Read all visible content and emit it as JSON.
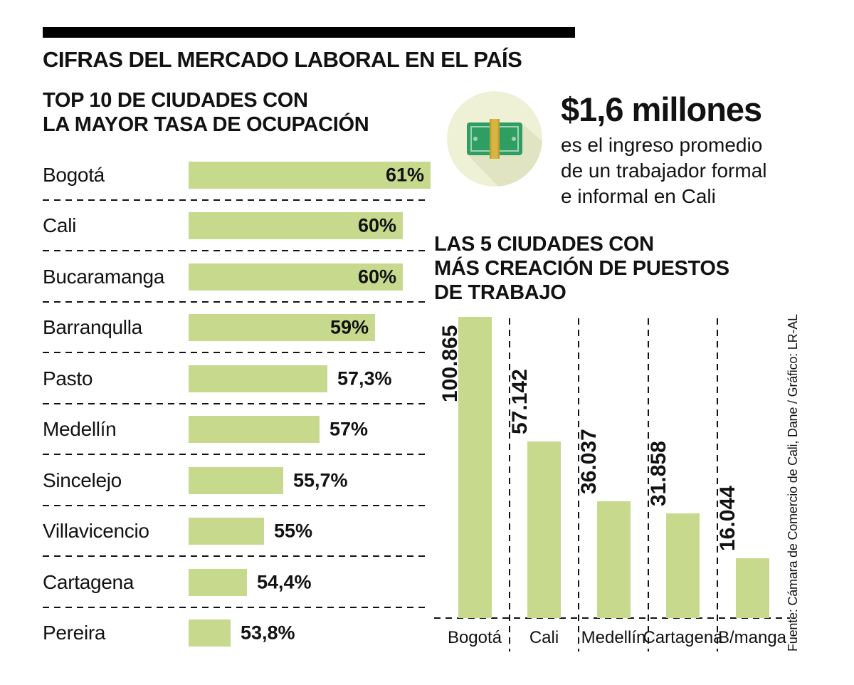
{
  "header": {
    "title": "CIFRAS DEL MERCADO LABORAL EN EL PAÍS"
  },
  "callout": {
    "icon": "money-bill-icon",
    "amount": "$1,6 millones",
    "description": "es el ingreso promedio\nde un trabajador formal\ne informal en Cali"
  },
  "source": "Fuente: Cámara de Comercio de Cali, Dane / Gráfico: LR-AL",
  "colors": {
    "bar_green": "#c6d98d",
    "icon_circle": "#eef1d6",
    "bill_green": "#2f9e63",
    "band_yellow": "#d9b441",
    "text": "#121212"
  },
  "chart_data": [
    {
      "type": "bar",
      "orientation": "horizontal",
      "title": "TOP 10 DE CIUDADES CON\nLA MAYOR TASA DE OCUPACIÓN",
      "categories": [
        "Bogotá",
        "Cali",
        "Bucaramanga",
        "Barranqulla",
        "Pasto",
        "Medellín",
        "Sincelejo",
        "Villavicencio",
        "Cartagena",
        "Pereira"
      ],
      "values": [
        61,
        60,
        60,
        59,
        57.3,
        57,
        55.7,
        55,
        54.4,
        53.8
      ],
      "labels": [
        "61%",
        "60%",
        "60%",
        "59%",
        "57,3%",
        "57%",
        "55,7%",
        "55%",
        "54,4%",
        "53,8%"
      ],
      "unit": "%",
      "xlim": [
        52.3,
        61
      ],
      "grid": false,
      "legend": false
    },
    {
      "type": "bar",
      "orientation": "vertical",
      "title": "LAS 5 CIUDADES CON\nMÁS CREACIÓN DE PUESTOS\nDE TRABAJO",
      "categories": [
        "Bogotá",
        "Cali",
        "Medellín",
        "Cartagena",
        "B/manga"
      ],
      "values": [
        100865,
        57142,
        36037,
        31858,
        16044
      ],
      "labels": [
        "100.865",
        "57.142",
        "36.037",
        "31.858",
        "16.044"
      ],
      "ylim": [
        0,
        100865
      ],
      "grid": false,
      "legend": false
    }
  ]
}
